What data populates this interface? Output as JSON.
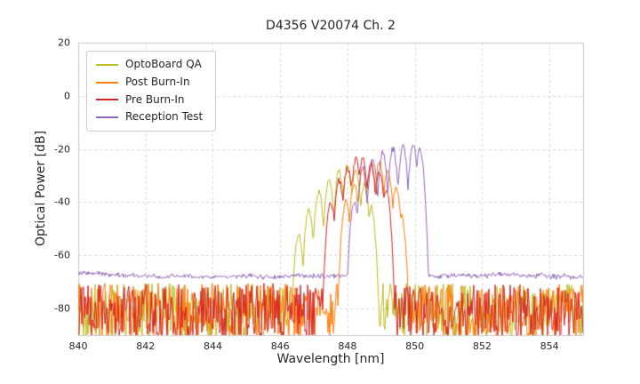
{
  "chart_data": {
    "type": "line",
    "title": "D4356 V20074 Ch. 2",
    "xlabel": "Wavelength [nm]",
    "ylabel": "Optical Power [dB]",
    "xlim": [
      840,
      855
    ],
    "ylim": [
      -90,
      20
    ],
    "xticks": [
      840,
      842,
      844,
      846,
      848,
      850,
      852,
      854
    ],
    "yticks": [
      20,
      0,
      -20,
      -40,
      -60,
      -80
    ],
    "grid": true,
    "grid_color": "#d4d4d4",
    "spine_color": "#c9c9c9",
    "text_color": "#262626",
    "legend_position": "upper left",
    "lobe_steepness_db_per_nm2": 700,
    "series": [
      {
        "name": "OptoBoard QA",
        "color": "#bcbd22",
        "style": "noisy",
        "noise_top_db": -70.5,
        "noise_bottom_db": -91.5,
        "peak_nm": 848.0,
        "peak_db": -26.5,
        "peak_lobes": [
          [
            846.55,
            -52
          ],
          [
            846.85,
            -43
          ],
          [
            847.15,
            -36
          ],
          [
            847.45,
            -31
          ],
          [
            847.75,
            -28
          ],
          [
            848.0,
            -26.5
          ],
          [
            848.25,
            -28
          ],
          [
            848.5,
            -33
          ],
          [
            848.7,
            -42
          ]
        ]
      },
      {
        "name": "Post Burn-In",
        "color": "#ff7f0e",
        "style": "noisy",
        "noise_top_db": -70.5,
        "noise_bottom_db": -91.5,
        "peak_nm": 848.95,
        "peak_db": -25,
        "peak_lobes": [
          [
            847.95,
            -40
          ],
          [
            848.2,
            -33
          ],
          [
            848.45,
            -28
          ],
          [
            848.7,
            -25.5
          ],
          [
            848.95,
            -25
          ],
          [
            849.2,
            -28
          ],
          [
            849.45,
            -34
          ],
          [
            849.6,
            -45
          ]
        ]
      },
      {
        "name": "Pre Burn-In",
        "color": "#d62728",
        "style": "noisy",
        "noise_top_db": -70.5,
        "noise_bottom_db": -91.5,
        "peak_nm": 848.45,
        "peak_db": -23.5,
        "peak_lobes": [
          [
            847.5,
            -40
          ],
          [
            847.75,
            -32
          ],
          [
            848.0,
            -27
          ],
          [
            848.25,
            -24
          ],
          [
            848.45,
            -23.5
          ],
          [
            848.7,
            -25.5
          ],
          [
            848.95,
            -29
          ],
          [
            849.15,
            -35
          ]
        ]
      },
      {
        "name": "Reception Test",
        "color": "#9467bd",
        "style": "smooth",
        "noise_floor_db": -66.8,
        "noise_jitter_db": 1.4,
        "peak_nm": 849.8,
        "peak_db": -19,
        "peak_lobes": [
          [
            848.2,
            -40
          ],
          [
            848.45,
            -27
          ],
          [
            848.75,
            -23.5
          ],
          [
            849.05,
            -21.5
          ],
          [
            849.35,
            -20
          ],
          [
            849.65,
            -19
          ],
          [
            849.95,
            -19
          ],
          [
            850.15,
            -20.5
          ]
        ]
      }
    ]
  }
}
